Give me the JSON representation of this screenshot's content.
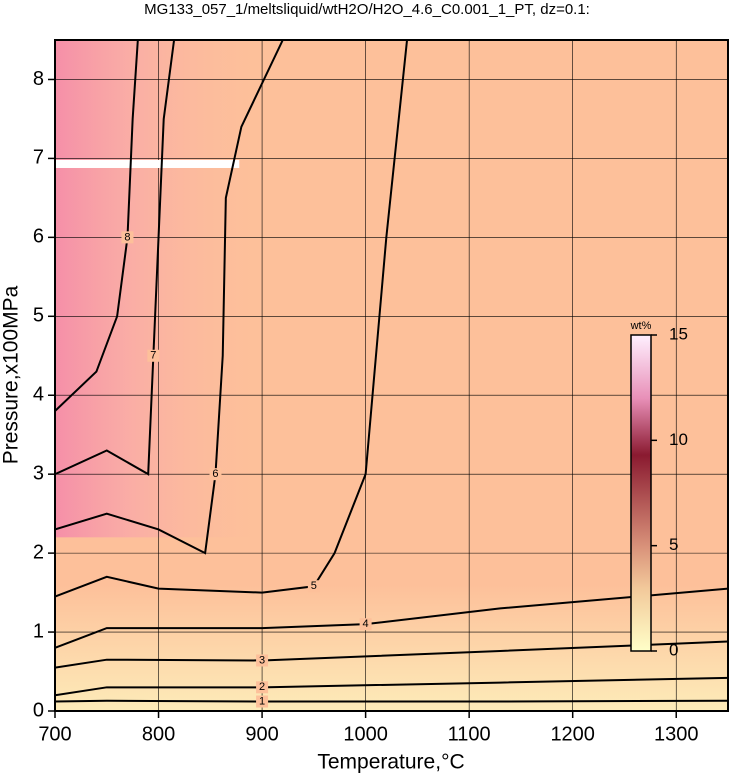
{
  "chart_data": {
    "type": "contour",
    "title": "MG133_057_1/meltsliquid/wtH2O/H2O_4.6_C0.001_1_PT, dz=0.1:",
    "x_label": "Temperature,°C",
    "y_label": "Pressure,x100MPa",
    "xlim": [
      700,
      1350
    ],
    "xticks": [
      700,
      800,
      900,
      1000,
      1100,
      1200,
      1300
    ],
    "ylim": [
      0,
      8.5
    ],
    "yticks": [
      0,
      1,
      2,
      3,
      4,
      5,
      6,
      7,
      8
    ],
    "grid": true,
    "fill": "#fdc09a",
    "line_color": "#000000",
    "contours": [
      {
        "level": 1,
        "x": [
          700,
          750,
          900,
          1130,
          1350
        ],
        "y": [
          0.12,
          0.13,
          0.12,
          0.12,
          0.13
        ]
      },
      {
        "level": 2,
        "x": [
          700,
          750,
          900,
          1130,
          1350
        ],
        "y": [
          0.2,
          0.3,
          0.3,
          0.36,
          0.42
        ]
      },
      {
        "level": 3,
        "x": [
          700,
          750,
          900,
          1130,
          1350
        ],
        "y": [
          0.55,
          0.65,
          0.64,
          0.76,
          0.88
        ]
      },
      {
        "level": 4,
        "x": [
          700,
          750,
          900,
          1000,
          1130,
          1350
        ],
        "y": [
          0.8,
          1.05,
          1.05,
          1.1,
          1.3,
          1.55
        ]
      },
      {
        "level": 5,
        "x": [
          700,
          750,
          800,
          900,
          950,
          970,
          1000,
          1020,
          1040
        ],
        "y": [
          1.45,
          1.7,
          1.55,
          1.5,
          1.58,
          2.0,
          3.0,
          6.0,
          8.5
        ]
      },
      {
        "level": 6,
        "x": [
          700,
          750,
          800,
          845,
          855,
          862,
          865,
          880,
          920
        ],
        "y": [
          2.3,
          2.5,
          2.3,
          2.0,
          3.0,
          4.5,
          6.5,
          7.4,
          8.5
        ]
      },
      {
        "level": 7,
        "x": [
          700,
          750,
          790,
          795,
          800,
          805,
          815
        ],
        "y": [
          3.0,
          3.3,
          3.0,
          4.5,
          6.0,
          7.5,
          8.5
        ]
      },
      {
        "level": 8,
        "x": [
          700,
          740,
          760,
          770,
          775,
          780
        ],
        "y": [
          3.8,
          4.3,
          5.0,
          6.0,
          7.5,
          8.5
        ]
      }
    ],
    "colorbar": {
      "label": "wt%",
      "lim": [
        0,
        15
      ],
      "ticks": [
        0,
        5,
        10,
        15
      ]
    }
  }
}
